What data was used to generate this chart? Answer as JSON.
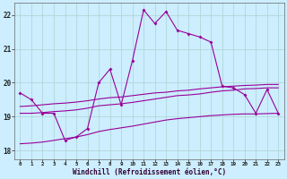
{
  "xlabel": "Windchill (Refroidissement éolien,°C)",
  "background_color": "#cceeff",
  "grid_color": "#b0d8d8",
  "line_color": "#990099",
  "xlim": [
    -0.5,
    23.5
  ],
  "ylim": [
    17.75,
    22.35
  ],
  "xticks": [
    0,
    1,
    2,
    3,
    4,
    5,
    6,
    7,
    8,
    9,
    10,
    11,
    12,
    13,
    14,
    15,
    16,
    17,
    18,
    19,
    20,
    21,
    22,
    23
  ],
  "yticks": [
    18,
    19,
    20,
    21,
    22
  ],
  "hours": [
    0,
    1,
    2,
    3,
    4,
    5,
    6,
    7,
    8,
    9,
    10,
    11,
    12,
    13,
    14,
    15,
    16,
    17,
    18,
    19,
    20,
    21,
    22,
    23
  ],
  "main_line": [
    19.7,
    19.5,
    19.1,
    19.1,
    18.3,
    18.4,
    18.65,
    20.0,
    20.4,
    19.35,
    20.65,
    22.15,
    21.75,
    22.1,
    21.55,
    21.45,
    21.35,
    21.2,
    19.9,
    19.85,
    19.65,
    19.1,
    19.8,
    19.1
  ],
  "line2": [
    19.1,
    19.1,
    19.12,
    19.15,
    19.17,
    19.2,
    19.25,
    19.32,
    19.35,
    19.38,
    19.42,
    19.47,
    19.52,
    19.57,
    19.62,
    19.64,
    19.67,
    19.72,
    19.76,
    19.78,
    19.82,
    19.83,
    19.85,
    19.85
  ],
  "line3": [
    19.3,
    19.32,
    19.35,
    19.38,
    19.4,
    19.43,
    19.47,
    19.52,
    19.56,
    19.58,
    19.62,
    19.66,
    19.7,
    19.72,
    19.76,
    19.78,
    19.82,
    19.85,
    19.88,
    19.9,
    19.92,
    19.93,
    19.95,
    19.95
  ],
  "line4": [
    18.2,
    18.22,
    18.25,
    18.3,
    18.35,
    18.4,
    18.47,
    18.56,
    18.62,
    18.67,
    18.72,
    18.78,
    18.84,
    18.9,
    18.94,
    18.97,
    19.0,
    19.03,
    19.05,
    19.07,
    19.08,
    19.08,
    19.09,
    19.1
  ]
}
